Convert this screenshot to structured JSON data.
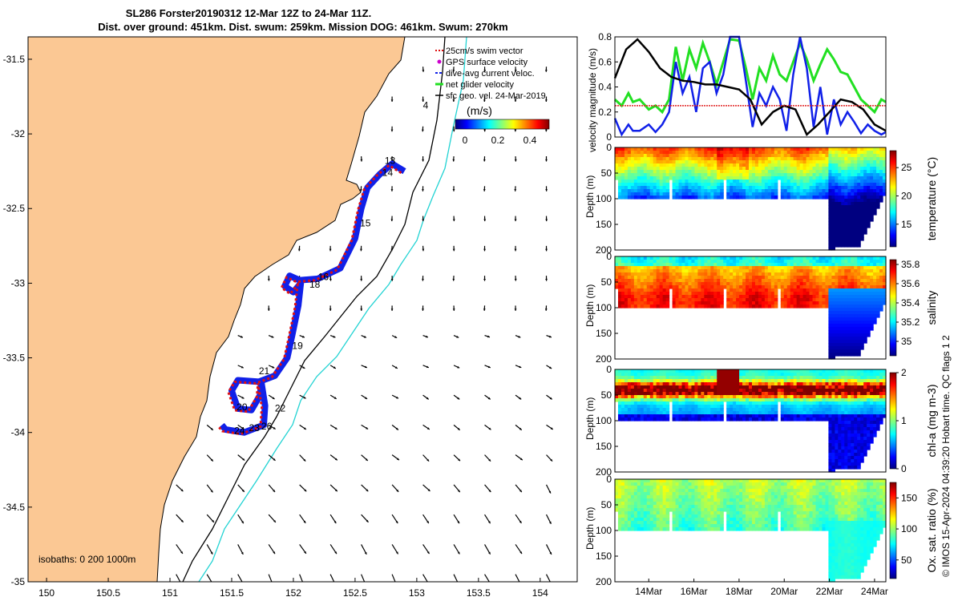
{
  "title_line1": "SL286 Forster20190312 12-Mar 12Z to 24-Mar 11Z.",
  "title_line2": "Dist. over ground: 451km. Dist. swum: 259km. Mission DOG: 461km. Swum: 270km",
  "footer_vertical": "© IMOS 15-Apr-2024 04:39:20 Hobart time. QC flags 1  2",
  "colors": {
    "land": "#fbc894",
    "track_blue": "#1020e8",
    "track_red": "#e01010",
    "isobath_200": "#000000",
    "isobath_1000": "#22d3d3",
    "glider_green": "#22e022",
    "ref_red": "#e02020"
  },
  "chart_data": [
    {
      "type": "map",
      "name": "track-map",
      "x_ticks": [
        "150",
        "150.5",
        "151",
        "151.5",
        "152",
        "152.5",
        "153",
        "153.5",
        "154"
      ],
      "x_tick_values": [
        150,
        150.5,
        151,
        151.5,
        152,
        152.5,
        153,
        153.5,
        154
      ],
      "y_ticks": [
        "-31.5",
        "-32",
        "-32.5",
        "-33",
        "-33.5",
        "-34",
        "-34.5",
        "-35"
      ],
      "y_tick_values": [
        -31.5,
        -32,
        -32.5,
        -33,
        -33.5,
        -34,
        -34.5,
        -35
      ],
      "xlim": [
        149.85,
        154.3
      ],
      "ylim": [
        -35,
        -31.35
      ],
      "legend": [
        {
          "label": "25cm/s swim vector",
          "color": "#e01010",
          "style": "dotted"
        },
        {
          "label": "GPS surface velocity",
          "color": "#cc00cc",
          "style": "dot"
        },
        {
          "label": "dive-avg current veloc.",
          "color": "#1020e8",
          "style": "dash"
        },
        {
          "label": "net glider velocity",
          "color": "#22e022",
          "style": "line"
        },
        {
          "label": "sfc geo. vel. 24-Mar-2019",
          "color": "#000000",
          "style": "line"
        }
      ],
      "colorbar": {
        "label": "(m/s)",
        "ticks": [
          "0",
          "0.2",
          "0.4"
        ],
        "range": [
          0,
          0.5
        ]
      },
      "isobath_label": "isobaths: 0   200  1000m",
      "day_labels": [
        {
          "text": "13",
          "lon": 152.74,
          "lat": -32.2
        },
        {
          "text": "14",
          "lon": 152.72,
          "lat": -32.28
        },
        {
          "text": "15",
          "lon": 152.54,
          "lat": -32.62
        },
        {
          "text": "16",
          "lon": 152.2,
          "lat": -32.98
        },
        {
          "text": "18",
          "lon": 152.13,
          "lat": -33.03
        },
        {
          "text": "19",
          "lon": 151.99,
          "lat": -33.44
        },
        {
          "text": "21",
          "lon": 151.72,
          "lat": -33.61
        },
        {
          "text": "20",
          "lon": 151.54,
          "lat": -33.85
        },
        {
          "text": "22",
          "lon": 151.85,
          "lat": -33.86
        },
        {
          "text": "24",
          "lon": 151.52,
          "lat": -34.01
        },
        {
          "text": "23",
          "lon": 151.64,
          "lat": -33.99
        },
        {
          "text": "26",
          "lon": 151.74,
          "lat": -33.98
        },
        {
          "text": "4",
          "lon": 153.05,
          "lat": -31.83
        }
      ],
      "glider_track": [
        [
          152.9,
          -32.25
        ],
        [
          152.8,
          -32.2
        ],
        [
          152.7,
          -32.27
        ],
        [
          152.6,
          -32.36
        ],
        [
          152.55,
          -32.5
        ],
        [
          152.5,
          -32.7
        ],
        [
          152.38,
          -32.9
        ],
        [
          152.2,
          -32.97
        ],
        [
          152.05,
          -32.98
        ],
        [
          151.97,
          -32.95
        ],
        [
          151.93,
          -33.02
        ],
        [
          152.0,
          -33.06
        ],
        [
          152.06,
          -33.0
        ],
        [
          152.04,
          -33.15
        ],
        [
          151.99,
          -33.35
        ],
        [
          151.95,
          -33.5
        ],
        [
          151.85,
          -33.62
        ],
        [
          151.72,
          -33.66
        ],
        [
          151.55,
          -33.65
        ],
        [
          151.5,
          -33.72
        ],
        [
          151.55,
          -33.84
        ],
        [
          151.66,
          -33.85
        ],
        [
          151.73,
          -33.75
        ],
        [
          151.74,
          -33.66
        ],
        [
          151.77,
          -33.82
        ],
        [
          151.76,
          -33.95
        ],
        [
          151.6,
          -34.0
        ],
        [
          151.45,
          -33.98
        ],
        [
          151.42,
          -33.95
        ]
      ]
    },
    {
      "type": "line",
      "name": "velocity-magnitude",
      "ylabel": "velocity magnitude (m/s)",
      "y_ticks": [
        "0",
        "0.2",
        "0.4",
        "0.6",
        "0.8"
      ],
      "ylim": [
        0,
        0.8
      ],
      "x_range_days": [
        12.5,
        24.5
      ],
      "series": [
        {
          "key": "net",
          "color": "#22e022",
          "values_x": [
            12.5,
            12.8,
            13.1,
            13.3,
            13.6,
            14.0,
            14.3,
            14.6,
            14.9,
            15.2,
            15.5,
            15.8,
            16.1,
            16.4,
            16.7,
            17.0,
            17.3,
            17.6,
            18.0,
            18.3,
            18.6,
            18.9,
            19.2,
            19.5,
            19.8,
            20.1,
            20.4,
            20.7,
            21.0,
            21.3,
            21.6,
            21.9,
            22.2,
            22.5,
            22.8,
            23.1,
            23.4,
            23.7,
            24.0,
            24.3,
            24.5
          ],
          "values_y": [
            0.3,
            0.25,
            0.35,
            0.28,
            0.3,
            0.22,
            0.25,
            0.2,
            0.3,
            0.72,
            0.45,
            0.7,
            0.55,
            0.75,
            0.6,
            0.42,
            0.6,
            0.78,
            0.77,
            0.55,
            0.3,
            0.55,
            0.45,
            0.65,
            0.5,
            0.45,
            0.6,
            0.75,
            0.62,
            0.45,
            0.58,
            0.7,
            0.62,
            0.52,
            0.5,
            0.4,
            0.3,
            0.25,
            0.2,
            0.3,
            0.28
          ]
        },
        {
          "key": "dive_avg",
          "color": "#1020e8",
          "values_x": [
            12.5,
            12.8,
            13.1,
            13.3,
            13.6,
            14.0,
            14.3,
            14.6,
            14.9,
            15.2,
            15.5,
            15.8,
            16.1,
            16.4,
            16.7,
            17.0,
            17.3,
            17.6,
            18.0,
            18.3,
            18.6,
            18.9,
            19.2,
            19.5,
            19.8,
            20.1,
            20.4,
            20.7,
            21.0,
            21.3,
            21.6,
            21.9,
            22.2,
            22.5,
            22.8,
            23.1,
            23.4,
            23.7,
            24.0,
            24.3,
            24.5
          ],
          "values_y": [
            0.15,
            0.02,
            0.1,
            0.05,
            0.05,
            0.1,
            0.04,
            0.1,
            0.2,
            0.6,
            0.35,
            0.48,
            0.2,
            0.55,
            0.6,
            0.35,
            0.5,
            0.8,
            0.8,
            0.45,
            0.08,
            0.35,
            0.25,
            0.4,
            0.3,
            0.05,
            0.5,
            0.8,
            0.55,
            0.08,
            0.4,
            0.02,
            0.3,
            0.1,
            0.2,
            0.12,
            0.03,
            0.1,
            0.05,
            0.02,
            0.04
          ]
        },
        {
          "key": "sfc_geo",
          "color": "#000000",
          "values_x": [
            12.5,
            13.0,
            13.5,
            14.0,
            14.5,
            15.0,
            15.5,
            16.0,
            16.5,
            17.0,
            17.5,
            18.0,
            18.5,
            19.0,
            19.5,
            20.0,
            20.5,
            21.0,
            21.5,
            22.0,
            22.5,
            23.0,
            23.5,
            24.0,
            24.5
          ],
          "values_y": [
            0.47,
            0.7,
            0.78,
            0.68,
            0.55,
            0.48,
            0.45,
            0.44,
            0.42,
            0.42,
            0.4,
            0.38,
            0.3,
            0.1,
            0.2,
            0.25,
            0.22,
            0.02,
            0.1,
            0.2,
            0.3,
            0.28,
            0.22,
            0.1,
            0.05
          ]
        },
        {
          "key": "ref_25cm",
          "color": "#e02020",
          "values_x": [
            12.5,
            24.5
          ],
          "values_y": [
            0.25,
            0.25
          ]
        }
      ]
    },
    {
      "type": "heatmap",
      "name": "temperature-section",
      "ylabel": "Depth (m)",
      "y_ticks": [
        "0",
        "50",
        "100",
        "150",
        "200"
      ],
      "cblabel": "temperature (°C)",
      "cb_ticks": [
        "15",
        "20",
        "25"
      ],
      "cb_range": [
        11,
        28
      ]
    },
    {
      "type": "heatmap",
      "name": "salinity-section",
      "ylabel": "Depth (m)",
      "y_ticks": [
        "0",
        "50",
        "100",
        "150",
        "200"
      ],
      "cblabel": "salinity",
      "cb_ticks": [
        "35",
        "35.2",
        "35.4",
        "35.6",
        "35.8"
      ],
      "cb_range": [
        34.85,
        35.85
      ]
    },
    {
      "type": "heatmap",
      "name": "chla-section",
      "ylabel": "Depth (m)",
      "y_ticks": [
        "0",
        "50",
        "100",
        "150",
        "200"
      ],
      "cblabel": "chl-a (mg m-3)",
      "cb_ticks": [
        "0",
        "1",
        "2"
      ],
      "cb_range": [
        0,
        2
      ]
    },
    {
      "type": "heatmap",
      "name": "oxygen-section",
      "ylabel": "Depth (m)",
      "y_ticks": [
        "0",
        "50",
        "100",
        "150",
        "200"
      ],
      "cblabel": "Ox. sat. ratio (%)",
      "cb_ticks": [
        "50",
        "100",
        "150"
      ],
      "cb_range": [
        20,
        175
      ]
    }
  ],
  "time_axis": {
    "ticks": [
      "14Mar",
      "16Mar",
      "18Mar",
      "20Mar",
      "22Mar",
      "24Mar"
    ],
    "tick_days": [
      14,
      16,
      18,
      20,
      22,
      24
    ],
    "range": [
      12.5,
      24.5
    ]
  }
}
